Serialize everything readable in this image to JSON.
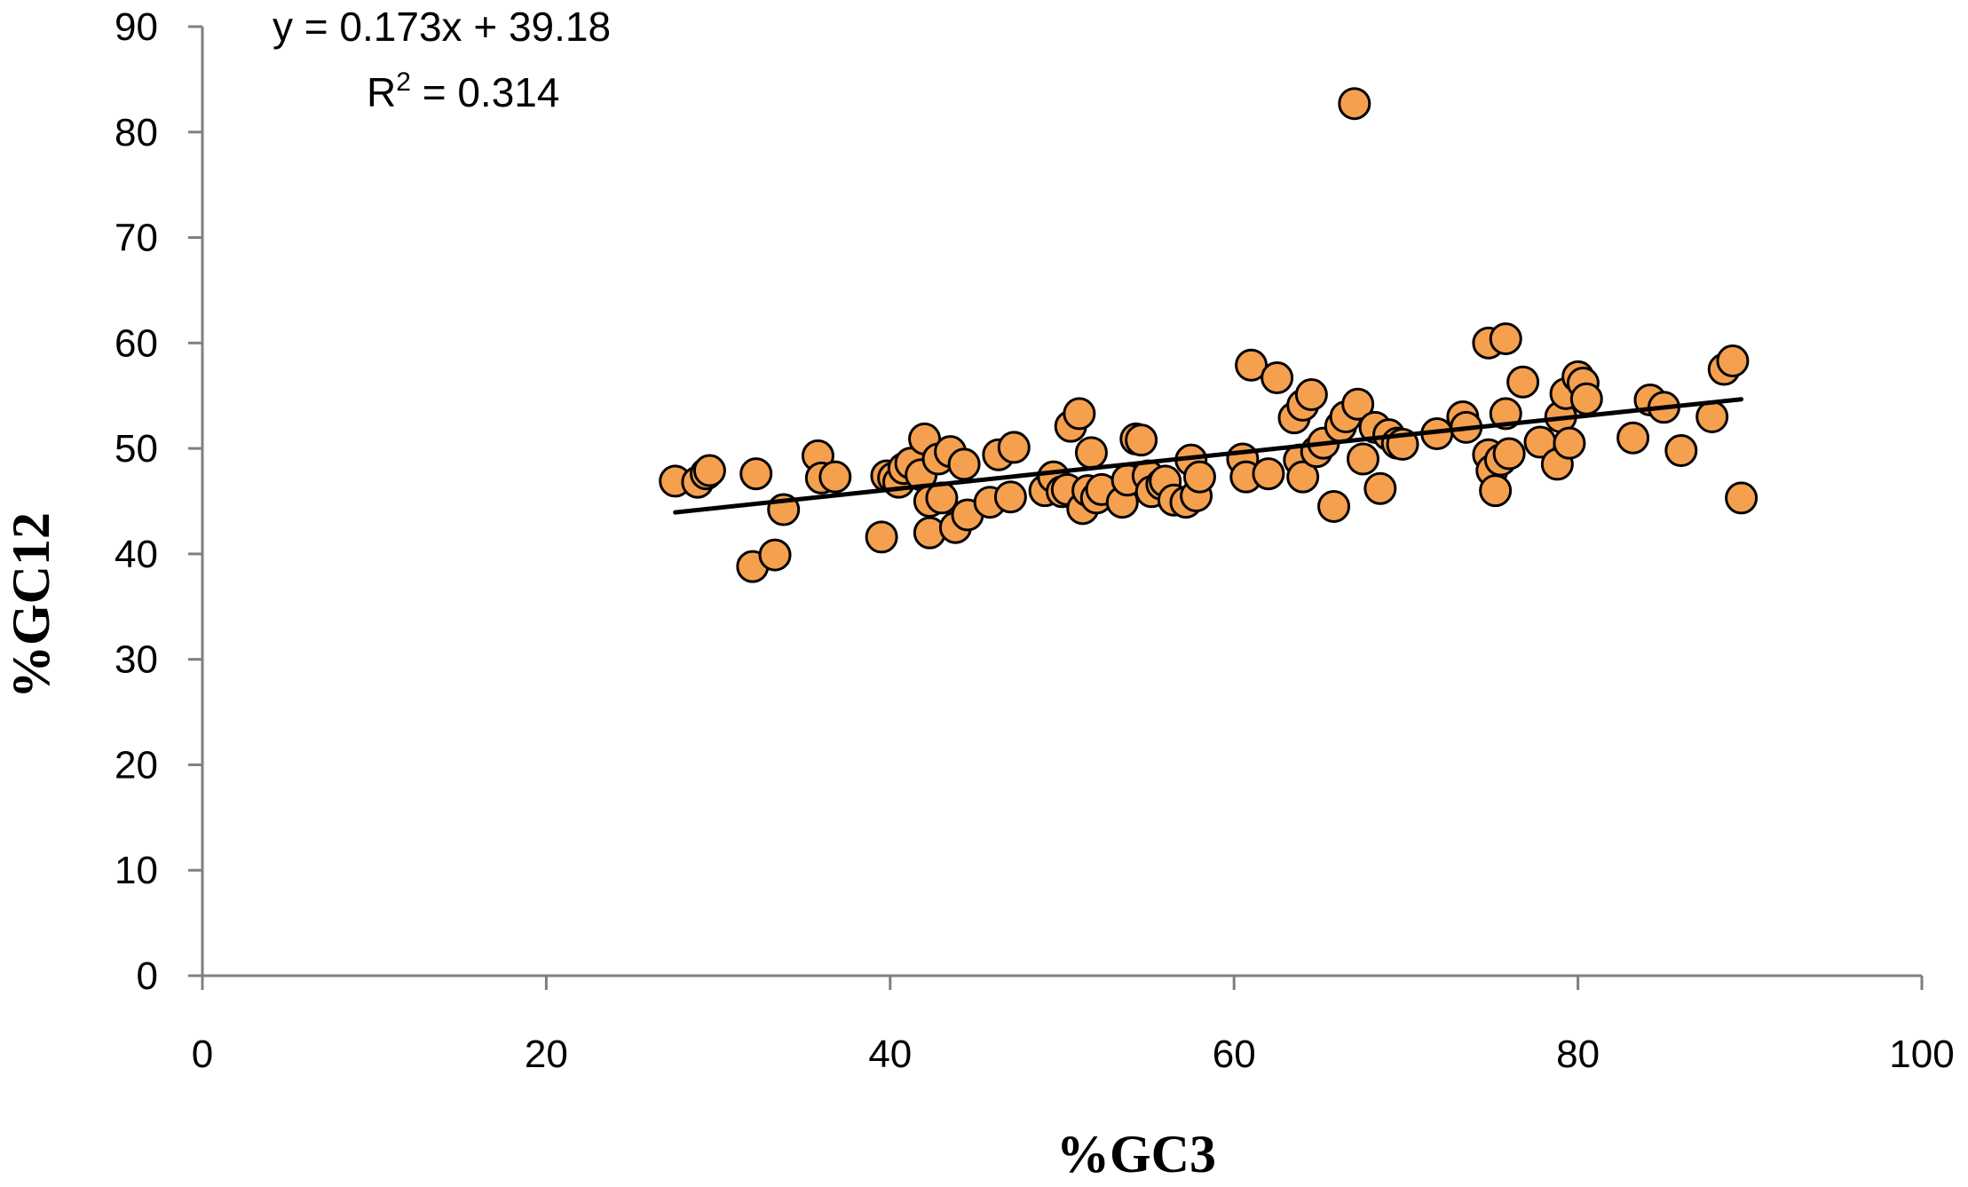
{
  "chart_data": {
    "type": "scatter",
    "title": "",
    "xlabel": "%GC3",
    "ylabel": "%GC12",
    "xlim": [
      0,
      100
    ],
    "ylim": [
      0,
      90
    ],
    "xticks": [
      0,
      20,
      40,
      60,
      80,
      100
    ],
    "yticks": [
      0,
      10,
      20,
      30,
      40,
      50,
      60,
      70,
      80,
      90
    ],
    "grid": false,
    "legend": "none",
    "marker_color": "#F5A04E",
    "marker_edge_color": "#000000",
    "trendline_color": "#000000",
    "trendline": {
      "slope": 0.173,
      "intercept": 39.18,
      "x_range": [
        27.5,
        89.5
      ],
      "equation_text": "y = 0.173x + 39.18",
      "r2_prefix": "R",
      "r2_sup": "2",
      "r2_value": " = 0.314"
    },
    "points": [
      {
        "x": 27.5,
        "y": 46.9
      },
      {
        "x": 28.8,
        "y": 46.8
      },
      {
        "x": 29.3,
        "y": 47.6
      },
      {
        "x": 29.5,
        "y": 47.9
      },
      {
        "x": 32.0,
        "y": 38.8
      },
      {
        "x": 32.2,
        "y": 47.6
      },
      {
        "x": 33.3,
        "y": 39.9
      },
      {
        "x": 33.8,
        "y": 44.2
      },
      {
        "x": 35.8,
        "y": 49.3
      },
      {
        "x": 36.0,
        "y": 47.2
      },
      {
        "x": 36.8,
        "y": 47.3
      },
      {
        "x": 39.5,
        "y": 41.6
      },
      {
        "x": 39.8,
        "y": 47.4
      },
      {
        "x": 40.2,
        "y": 47.2
      },
      {
        "x": 40.5,
        "y": 46.8
      },
      {
        "x": 40.8,
        "y": 48.1
      },
      {
        "x": 41.2,
        "y": 48.6
      },
      {
        "x": 41.8,
        "y": 47.5
      },
      {
        "x": 42.0,
        "y": 50.9
      },
      {
        "x": 42.3,
        "y": 45.0
      },
      {
        "x": 42.3,
        "y": 42.0
      },
      {
        "x": 42.8,
        "y": 49.0
      },
      {
        "x": 43.0,
        "y": 45.3
      },
      {
        "x": 43.5,
        "y": 49.7
      },
      {
        "x": 43.8,
        "y": 42.5
      },
      {
        "x": 44.3,
        "y": 48.5
      },
      {
        "x": 44.5,
        "y": 43.7
      },
      {
        "x": 45.8,
        "y": 44.9
      },
      {
        "x": 46.3,
        "y": 49.4
      },
      {
        "x": 47.0,
        "y": 45.4
      },
      {
        "x": 47.2,
        "y": 50.1
      },
      {
        "x": 49.0,
        "y": 46.0
      },
      {
        "x": 49.5,
        "y": 47.3
      },
      {
        "x": 50.0,
        "y": 45.9
      },
      {
        "x": 50.3,
        "y": 46.1
      },
      {
        "x": 50.5,
        "y": 52.1
      },
      {
        "x": 51.0,
        "y": 53.3
      },
      {
        "x": 51.2,
        "y": 44.3
      },
      {
        "x": 51.5,
        "y": 46.0
      },
      {
        "x": 51.7,
        "y": 49.6
      },
      {
        "x": 52.0,
        "y": 45.3
      },
      {
        "x": 52.3,
        "y": 46.1
      },
      {
        "x": 53.5,
        "y": 44.9
      },
      {
        "x": 53.8,
        "y": 47.0
      },
      {
        "x": 54.3,
        "y": 50.9
      },
      {
        "x": 54.6,
        "y": 50.8
      },
      {
        "x": 55.0,
        "y": 47.4
      },
      {
        "x": 55.2,
        "y": 45.9
      },
      {
        "x": 55.8,
        "y": 46.6
      },
      {
        "x": 56.0,
        "y": 46.9
      },
      {
        "x": 56.5,
        "y": 45.1
      },
      {
        "x": 57.2,
        "y": 44.9
      },
      {
        "x": 57.5,
        "y": 48.9
      },
      {
        "x": 57.8,
        "y": 45.5
      },
      {
        "x": 58.0,
        "y": 47.3
      },
      {
        "x": 60.5,
        "y": 49.0
      },
      {
        "x": 60.7,
        "y": 47.3
      },
      {
        "x": 61.0,
        "y": 57.9
      },
      {
        "x": 62.0,
        "y": 47.6
      },
      {
        "x": 62.5,
        "y": 56.7
      },
      {
        "x": 63.5,
        "y": 52.9
      },
      {
        "x": 63.8,
        "y": 48.9
      },
      {
        "x": 64.0,
        "y": 54.1
      },
      {
        "x": 64.0,
        "y": 47.3
      },
      {
        "x": 64.5,
        "y": 55.1
      },
      {
        "x": 64.8,
        "y": 49.7
      },
      {
        "x": 65.2,
        "y": 50.5
      },
      {
        "x": 65.8,
        "y": 44.5
      },
      {
        "x": 66.2,
        "y": 52.1
      },
      {
        "x": 66.5,
        "y": 53.0
      },
      {
        "x": 67.0,
        "y": 82.7
      },
      {
        "x": 67.2,
        "y": 54.2
      },
      {
        "x": 67.5,
        "y": 49.0
      },
      {
        "x": 68.2,
        "y": 52.0
      },
      {
        "x": 68.5,
        "y": 46.2
      },
      {
        "x": 69.0,
        "y": 51.3
      },
      {
        "x": 69.5,
        "y": 50.5
      },
      {
        "x": 69.8,
        "y": 50.4
      },
      {
        "x": 71.8,
        "y": 51.4
      },
      {
        "x": 73.3,
        "y": 53.0
      },
      {
        "x": 73.5,
        "y": 52.0
      },
      {
        "x": 74.8,
        "y": 60.0
      },
      {
        "x": 74.8,
        "y": 49.4
      },
      {
        "x": 75.0,
        "y": 47.9
      },
      {
        "x": 75.2,
        "y": 46.0
      },
      {
        "x": 75.5,
        "y": 48.9
      },
      {
        "x": 75.8,
        "y": 60.4
      },
      {
        "x": 75.8,
        "y": 53.3
      },
      {
        "x": 76.0,
        "y": 49.5
      },
      {
        "x": 76.8,
        "y": 56.3
      },
      {
        "x": 77.8,
        "y": 50.6
      },
      {
        "x": 78.8,
        "y": 48.5
      },
      {
        "x": 79.0,
        "y": 53.0
      },
      {
        "x": 79.3,
        "y": 55.2
      },
      {
        "x": 79.5,
        "y": 50.5
      },
      {
        "x": 80.0,
        "y": 56.8
      },
      {
        "x": 80.3,
        "y": 56.2
      },
      {
        "x": 80.5,
        "y": 54.7
      },
      {
        "x": 83.2,
        "y": 51.0
      },
      {
        "x": 84.2,
        "y": 54.6
      },
      {
        "x": 85.0,
        "y": 53.9
      },
      {
        "x": 86.0,
        "y": 49.8
      },
      {
        "x": 87.8,
        "y": 53.0
      },
      {
        "x": 88.5,
        "y": 57.5
      },
      {
        "x": 89.0,
        "y": 58.3
      },
      {
        "x": 89.5,
        "y": 45.3
      }
    ]
  }
}
